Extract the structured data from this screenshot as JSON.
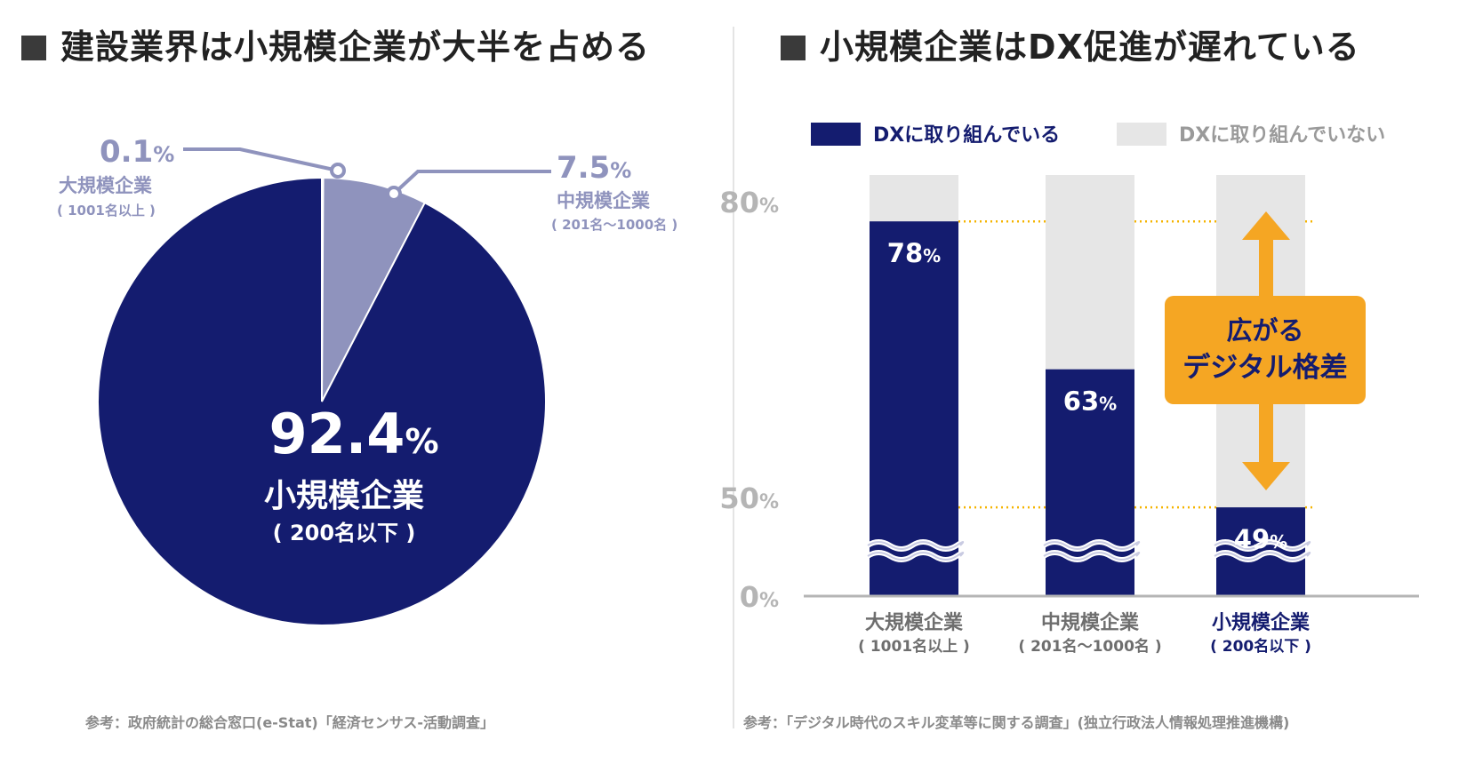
{
  "left_panel": {
    "title": "建設業界は小規模企業が大半を占める",
    "source": "参考：政府統計の総合窓口(e-Stat)「経済センサス-活動調査」"
  },
  "right_panel": {
    "title": "小規模企業はDX促進が遅れている",
    "source": "参考：「デジタル時代のスキル変革等に関する調査」(独立行政法人情報処理推進機構)",
    "callout": {
      "line1": "広がる",
      "line2": "デジタル格差"
    }
  },
  "colors": {
    "navy": "#141c6f",
    "lavender": "#8f93bd",
    "gray_bar": "#e6e6e6",
    "orange": "#f5a623",
    "dotted": "#f5b400"
  },
  "chart_data": [
    {
      "type": "pie",
      "slices": [
        {
          "value_label": "92.4",
          "unit": "%",
          "value": 92.4,
          "name": "小規模企業",
          "sub": "( 200名以下 )",
          "color": "#141c6f"
        },
        {
          "value_label": "0.1",
          "unit": "%",
          "value": 0.1,
          "name": "大規模企業",
          "sub": "( 1001名以上 )",
          "color": "#8f93bd"
        },
        {
          "value_label": "7.5",
          "unit": "%",
          "value": 7.5,
          "name": "中規模企業",
          "sub": "( 201名～1000名 )",
          "color": "#8f93bd"
        }
      ]
    },
    {
      "type": "bar",
      "legend": [
        "DXに取り組んでいる",
        "DXに取り組んでいない"
      ],
      "categories": [
        {
          "name": "大規模企業",
          "sub": "( 1001名以上 )"
        },
        {
          "name": "中規模企業",
          "sub": "( 201名～1000名 )"
        },
        {
          "name": "小規模企業",
          "sub": "( 200名以下 )"
        }
      ],
      "values": [
        78,
        63,
        49
      ],
      "value_labels": [
        "78",
        "63",
        "49"
      ],
      "unit": "%",
      "y_ticks": [
        {
          "label": "80",
          "unit": "%",
          "value": 80
        },
        {
          "label": "50",
          "unit": "%",
          "value": 50
        },
        {
          "label": "0",
          "unit": "%",
          "value": 0
        }
      ],
      "axis_break": true,
      "reference_lines": [
        78,
        49
      ]
    }
  ]
}
